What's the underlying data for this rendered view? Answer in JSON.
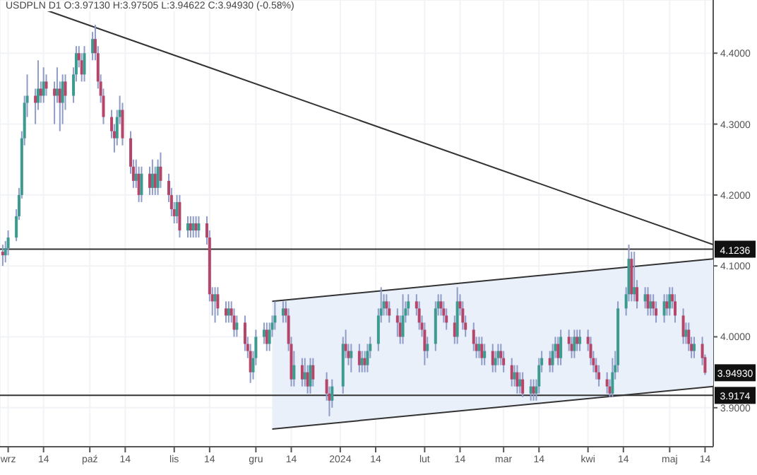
{
  "chart_data": {
    "type": "candlestick",
    "title": "USDPLN D1 O:3.97130 H:3.97505 L:3.94622 C:3.94930 (-0.58%)",
    "x": [
      "2023-08-30",
      "2023-08-31",
      "2023-09-01",
      "2023-09-04",
      "2023-09-05",
      "2023-09-06",
      "2023-09-07",
      "2023-09-08",
      "2023-09-11",
      "2023-09-12",
      "2023-09-13",
      "2023-09-14",
      "2023-09-15",
      "2023-09-18",
      "2023-09-19",
      "2023-09-20",
      "2023-09-21",
      "2023-09-22",
      "2023-09-25",
      "2023-09-26",
      "2023-09-27",
      "2023-09-28",
      "2023-09-29",
      "2023-10-02",
      "2023-10-03",
      "2023-10-04",
      "2023-10-05",
      "2023-10-06",
      "2023-10-09",
      "2023-10-10",
      "2023-10-11",
      "2023-10-12",
      "2023-10-13",
      "2023-10-16",
      "2023-10-17",
      "2023-10-18",
      "2023-10-19",
      "2023-10-20",
      "2023-10-23",
      "2023-10-24",
      "2023-10-25",
      "2023-10-26",
      "2023-10-27",
      "2023-10-30",
      "2023-10-31",
      "2023-11-01",
      "2023-11-02",
      "2023-11-03",
      "2023-11-06",
      "2023-11-07",
      "2023-11-08",
      "2023-11-09",
      "2023-11-10",
      "2023-11-13",
      "2023-11-14",
      "2023-11-15",
      "2023-11-16",
      "2023-11-17",
      "2023-11-20",
      "2023-11-21",
      "2023-11-22",
      "2023-11-23",
      "2023-11-24",
      "2023-11-27",
      "2023-11-28",
      "2023-11-29",
      "2023-11-30",
      "2023-12-01",
      "2023-12-04",
      "2023-12-05",
      "2023-12-06",
      "2023-12-07",
      "2023-12-08",
      "2023-12-11",
      "2023-12-12",
      "2023-12-13",
      "2023-12-14",
      "2023-12-15",
      "2023-12-18",
      "2023-12-19",
      "2023-12-20",
      "2023-12-21",
      "2023-12-22",
      "2023-12-27",
      "2023-12-28",
      "2023-12-29",
      "2024-01-02",
      "2024-01-03",
      "2024-01-04",
      "2024-01-05",
      "2024-01-08",
      "2024-01-09",
      "2024-01-10",
      "2024-01-11",
      "2024-01-12",
      "2024-01-15",
      "2024-01-16",
      "2024-01-17",
      "2024-01-18",
      "2024-01-19",
      "2024-01-22",
      "2024-01-23",
      "2024-01-24",
      "2024-01-25",
      "2024-01-26",
      "2024-01-29",
      "2024-01-30",
      "2024-01-31",
      "2024-02-01",
      "2024-02-02",
      "2024-02-05",
      "2024-02-06",
      "2024-02-07",
      "2024-02-08",
      "2024-02-09",
      "2024-02-12",
      "2024-02-13",
      "2024-02-14",
      "2024-02-15",
      "2024-02-16",
      "2024-02-19",
      "2024-02-20",
      "2024-02-21",
      "2024-02-22",
      "2024-02-23",
      "2024-02-26",
      "2024-02-27",
      "2024-02-28",
      "2024-02-29",
      "2024-03-01",
      "2024-03-04",
      "2024-03-05",
      "2024-03-06",
      "2024-03-07",
      "2024-03-08",
      "2024-03-11",
      "2024-03-12",
      "2024-03-13",
      "2024-03-14",
      "2024-03-15",
      "2024-03-18",
      "2024-03-19",
      "2024-03-20",
      "2024-03-21",
      "2024-03-22",
      "2024-03-25",
      "2024-03-26",
      "2024-03-27",
      "2024-03-28",
      "2024-03-29",
      "2024-04-01",
      "2024-04-02",
      "2024-04-03",
      "2024-04-04",
      "2024-04-05",
      "2024-04-08",
      "2024-04-09",
      "2024-04-10",
      "2024-04-11",
      "2024-04-12",
      "2024-04-15",
      "2024-04-16",
      "2024-04-17",
      "2024-04-18",
      "2024-04-19",
      "2024-04-22",
      "2024-04-23",
      "2024-04-24",
      "2024-04-25",
      "2024-04-26",
      "2024-04-29",
      "2024-04-30",
      "2024-05-01",
      "2024-05-02",
      "2024-05-03",
      "2024-05-06",
      "2024-05-07",
      "2024-05-08",
      "2024-05-09",
      "2024-05-10",
      "2024-05-13",
      "2024-05-14"
    ],
    "ohlc": [
      [
        4.12,
        4.13,
        4.1,
        4.115
      ],
      [
        4.115,
        4.135,
        4.105,
        4.125
      ],
      [
        4.125,
        4.15,
        4.115,
        4.14
      ],
      [
        4.14,
        4.18,
        4.135,
        4.17
      ],
      [
        4.17,
        4.21,
        4.165,
        4.2
      ],
      [
        4.2,
        4.29,
        4.195,
        4.28
      ],
      [
        4.28,
        4.34,
        4.27,
        4.33
      ],
      [
        4.33,
        4.37,
        4.31,
        4.34
      ],
      [
        4.34,
        4.35,
        4.3,
        4.33
      ],
      [
        4.33,
        4.39,
        4.32,
        4.35
      ],
      [
        4.35,
        4.36,
        4.33,
        4.34
      ],
      [
        4.34,
        4.38,
        4.33,
        4.36
      ],
      [
        4.36,
        4.37,
        4.34,
        4.35
      ],
      [
        4.35,
        4.36,
        4.3,
        4.34
      ],
      [
        4.34,
        4.38,
        4.33,
        4.35
      ],
      [
        4.35,
        4.36,
        4.29,
        4.33
      ],
      [
        4.33,
        4.37,
        4.3,
        4.36
      ],
      [
        4.36,
        4.37,
        4.32,
        4.34
      ],
      [
        4.34,
        4.38,
        4.33,
        4.37
      ],
      [
        4.37,
        4.41,
        4.36,
        4.4
      ],
      [
        4.4,
        4.41,
        4.38,
        4.39
      ],
      [
        4.39,
        4.4,
        4.36,
        4.37
      ],
      [
        4.37,
        4.41,
        4.36,
        4.4
      ],
      [
        4.4,
        4.43,
        4.39,
        4.42
      ],
      [
        4.42,
        4.44,
        4.39,
        4.4
      ],
      [
        4.4,
        4.41,
        4.35,
        4.36
      ],
      [
        4.36,
        4.37,
        4.33,
        4.34
      ],
      [
        4.34,
        4.35,
        4.3,
        4.31
      ],
      [
        4.31,
        4.32,
        4.28,
        4.29
      ],
      [
        4.29,
        4.3,
        4.26,
        4.28
      ],
      [
        4.28,
        4.32,
        4.27,
        4.31
      ],
      [
        4.31,
        4.34,
        4.3,
        4.32
      ],
      [
        4.32,
        4.33,
        4.27,
        4.28
      ],
      [
        4.28,
        4.29,
        4.23,
        4.24
      ],
      [
        4.24,
        4.25,
        4.21,
        4.22
      ],
      [
        4.22,
        4.25,
        4.21,
        4.23
      ],
      [
        4.23,
        4.24,
        4.19,
        4.2
      ],
      [
        4.2,
        4.24,
        4.19,
        4.23
      ],
      [
        4.23,
        4.24,
        4.2,
        4.21
      ],
      [
        4.21,
        4.25,
        4.2,
        4.23
      ],
      [
        4.23,
        4.24,
        4.2,
        4.21
      ],
      [
        4.21,
        4.25,
        4.2,
        4.24
      ],
      [
        4.24,
        4.26,
        4.21,
        4.22
      ],
      [
        4.22,
        4.23,
        4.19,
        4.2
      ],
      [
        4.2,
        4.21,
        4.17,
        4.18
      ],
      [
        4.18,
        4.19,
        4.16,
        4.17
      ],
      [
        4.17,
        4.2,
        4.16,
        4.19
      ],
      [
        4.19,
        4.2,
        4.14,
        4.15
      ],
      [
        4.15,
        4.17,
        4.14,
        4.16
      ],
      [
        4.16,
        4.17,
        4.14,
        4.15
      ],
      [
        4.15,
        4.17,
        4.14,
        4.16
      ],
      [
        4.16,
        4.17,
        4.14,
        4.15
      ],
      [
        4.15,
        4.17,
        4.14,
        4.16
      ],
      [
        4.16,
        4.17,
        4.13,
        4.14
      ],
      [
        4.14,
        4.15,
        4.05,
        4.06
      ],
      [
        4.06,
        4.07,
        4.03,
        4.05
      ],
      [
        4.05,
        4.07,
        4.02,
        4.06
      ],
      [
        4.06,
        4.07,
        4.03,
        4.04
      ],
      [
        4.04,
        4.05,
        4.02,
        4.03
      ],
      [
        4.03,
        4.05,
        4.02,
        4.04
      ],
      [
        4.04,
        4.05,
        4.02,
        4.03
      ],
      [
        4.03,
        4.04,
        4.0,
        4.01
      ],
      [
        4.01,
        4.03,
        4.0,
        4.02
      ],
      [
        4.02,
        4.03,
        3.98,
        3.99
      ],
      [
        3.99,
        4.0,
        3.97,
        3.98
      ],
      [
        3.98,
        3.99,
        3.935,
        3.95
      ],
      [
        3.95,
        3.98,
        3.94,
        3.97
      ],
      [
        3.97,
        4.01,
        3.96,
        4.0
      ],
      [
        4.0,
        4.02,
        3.99,
        4.01
      ],
      [
        4.01,
        4.02,
        3.98,
        3.99
      ],
      [
        3.99,
        4.02,
        3.98,
        4.01
      ],
      [
        4.01,
        4.03,
        4.0,
        4.02
      ],
      [
        4.02,
        4.05,
        4.01,
        4.03
      ],
      [
        4.03,
        4.05,
        4.02,
        4.04
      ],
      [
        4.04,
        4.05,
        4.02,
        4.03
      ],
      [
        4.03,
        4.04,
        3.98,
        3.99
      ],
      [
        3.99,
        4.0,
        3.93,
        3.94
      ],
      [
        3.94,
        3.98,
        3.93,
        3.96
      ],
      [
        3.96,
        3.97,
        3.93,
        3.94
      ],
      [
        3.94,
        3.97,
        3.93,
        3.95
      ],
      [
        3.95,
        3.96,
        3.92,
        3.93
      ],
      [
        3.93,
        3.97,
        3.92,
        3.96
      ],
      [
        3.96,
        3.97,
        3.93,
        3.94
      ],
      [
        3.94,
        3.95,
        3.91,
        3.92
      ],
      [
        3.92,
        3.93,
        3.888,
        3.91
      ],
      [
        3.91,
        3.94,
        3.9,
        3.93
      ],
      [
        3.93,
        4.0,
        3.92,
        3.99
      ],
      [
        3.99,
        4.01,
        3.97,
        3.98
      ],
      [
        3.98,
        3.99,
        3.96,
        3.97
      ],
      [
        3.97,
        3.99,
        3.95,
        3.98
      ],
      [
        3.98,
        3.99,
        3.95,
        3.96
      ],
      [
        3.96,
        3.98,
        3.95,
        3.97
      ],
      [
        3.97,
        3.98,
        3.95,
        3.96
      ],
      [
        3.96,
        3.99,
        3.95,
        3.98
      ],
      [
        3.98,
        4.0,
        3.97,
        3.99
      ],
      [
        3.99,
        4.04,
        3.98,
        4.03
      ],
      [
        4.03,
        4.07,
        4.02,
        4.04
      ],
      [
        4.04,
        4.06,
        4.03,
        4.05
      ],
      [
        4.05,
        4.06,
        4.03,
        4.04
      ],
      [
        4.04,
        4.05,
        4.02,
        4.03
      ],
      [
        4.03,
        4.04,
        4.0,
        4.02
      ],
      [
        4.02,
        4.03,
        3.99,
        4.0
      ],
      [
        4.0,
        4.06,
        3.99,
        4.03
      ],
      [
        4.03,
        4.05,
        4.02,
        4.04
      ],
      [
        4.04,
        4.06,
        4.03,
        4.05
      ],
      [
        4.05,
        4.06,
        4.03,
        4.04
      ],
      [
        4.04,
        4.05,
        4.01,
        4.02
      ],
      [
        4.02,
        4.03,
        4.0,
        4.01
      ],
      [
        4.01,
        4.02,
        3.96,
        3.98
      ],
      [
        3.98,
        4.0,
        3.97,
        3.99
      ],
      [
        3.99,
        4.05,
        3.98,
        4.04
      ],
      [
        4.04,
        4.06,
        4.03,
        4.05
      ],
      [
        4.05,
        4.06,
        4.03,
        4.04
      ],
      [
        4.04,
        4.05,
        4.02,
        4.03
      ],
      [
        4.03,
        4.04,
        4.01,
        4.02
      ],
      [
        4.02,
        4.03,
        3.99,
        4.0
      ],
      [
        4.0,
        4.07,
        3.99,
        4.05
      ],
      [
        4.05,
        4.06,
        4.03,
        4.04
      ],
      [
        4.04,
        4.05,
        4.01,
        4.02
      ],
      [
        4.02,
        4.03,
        4.0,
        4.01
      ],
      [
        4.01,
        4.02,
        3.98,
        3.99
      ],
      [
        3.99,
        4.0,
        3.97,
        3.98
      ],
      [
        3.98,
        4.0,
        3.97,
        3.99
      ],
      [
        3.99,
        4.0,
        3.96,
        3.97
      ],
      [
        3.97,
        3.99,
        3.96,
        3.98
      ],
      [
        3.98,
        3.99,
        3.95,
        3.96
      ],
      [
        3.96,
        3.98,
        3.95,
        3.97
      ],
      [
        3.97,
        3.99,
        3.96,
        3.98
      ],
      [
        3.98,
        3.99,
        3.96,
        3.97
      ],
      [
        3.97,
        3.98,
        3.95,
        3.96
      ],
      [
        3.96,
        3.97,
        3.93,
        3.94
      ],
      [
        3.94,
        3.96,
        3.93,
        3.95
      ],
      [
        3.95,
        3.96,
        3.92,
        3.93
      ],
      [
        3.93,
        3.95,
        3.92,
        3.94
      ],
      [
        3.94,
        3.95,
        3.915,
        3.92
      ],
      [
        3.92,
        3.94,
        3.91,
        3.93
      ],
      [
        3.93,
        3.94,
        3.91,
        3.92
      ],
      [
        3.92,
        3.94,
        3.91,
        3.93
      ],
      [
        3.93,
        3.97,
        3.92,
        3.96
      ],
      [
        3.96,
        3.98,
        3.95,
        3.97
      ],
      [
        3.97,
        3.98,
        3.95,
        3.96
      ],
      [
        3.96,
        3.99,
        3.95,
        3.98
      ],
      [
        3.98,
        4.0,
        3.97,
        3.99
      ],
      [
        3.99,
        4.0,
        3.96,
        3.97
      ],
      [
        3.97,
        4.01,
        3.96,
        4.0
      ],
      [
        4.0,
        4.01,
        3.98,
        3.99
      ],
      [
        3.99,
        4.0,
        3.97,
        3.98
      ],
      [
        3.98,
        4.01,
        3.97,
        4.0
      ],
      [
        4.0,
        4.01,
        3.98,
        3.99
      ],
      [
        3.99,
        4.01,
        3.98,
        4.0
      ],
      [
        4.0,
        4.01,
        3.98,
        3.99
      ],
      [
        3.99,
        4.0,
        3.96,
        3.97
      ],
      [
        3.97,
        3.98,
        3.95,
        3.96
      ],
      [
        3.96,
        3.97,
        3.94,
        3.95
      ],
      [
        3.95,
        3.96,
        3.93,
        3.94
      ],
      [
        3.94,
        3.95,
        3.92,
        3.93
      ],
      [
        3.93,
        3.94,
        3.915,
        3.92
      ],
      [
        3.92,
        3.97,
        3.915,
        3.95
      ],
      [
        3.95,
        3.98,
        3.94,
        3.96
      ],
      [
        3.96,
        4.05,
        3.95,
        4.04
      ],
      [
        4.04,
        4.07,
        4.03,
        4.06
      ],
      [
        4.06,
        4.13,
        4.05,
        4.11
      ],
      [
        4.11,
        4.12,
        4.05,
        4.06
      ],
      [
        4.06,
        4.12,
        4.05,
        4.07
      ],
      [
        4.07,
        4.08,
        4.04,
        4.05
      ],
      [
        4.05,
        4.07,
        4.04,
        4.06
      ],
      [
        4.06,
        4.07,
        4.03,
        4.04
      ],
      [
        4.04,
        4.06,
        4.03,
        4.05
      ],
      [
        4.05,
        4.06,
        4.03,
        4.04
      ],
      [
        4.04,
        4.05,
        4.02,
        4.03
      ],
      [
        4.03,
        4.06,
        4.02,
        4.05
      ],
      [
        4.05,
        4.06,
        4.03,
        4.04
      ],
      [
        4.04,
        4.07,
        4.03,
        4.06
      ],
      [
        4.06,
        4.07,
        4.04,
        4.05
      ],
      [
        4.05,
        4.06,
        4.02,
        4.03
      ],
      [
        4.03,
        4.04,
        3.99,
        4.0
      ],
      [
        4.0,
        4.02,
        3.99,
        4.01
      ],
      [
        4.01,
        4.02,
        3.98,
        3.99
      ],
      [
        3.99,
        4.0,
        3.97,
        3.98
      ],
      [
        3.98,
        4.0,
        3.97,
        3.99
      ],
      [
        3.99,
        4.0,
        3.96,
        3.97
      ],
      [
        3.9713,
        3.97505,
        3.94622,
        3.9493
      ]
    ],
    "colors": [
      "#b5466a",
      "#3d9a8f",
      "#3d9a8f",
      "#3d9a8f",
      "#3d9a8f",
      "#3d9a8f",
      "#3d9a8f",
      "#3d9a8f",
      "#b5466a",
      "#3d9a8f",
      "#b5466a",
      "#3d9a8f",
      "#b5466a",
      "#b5466a",
      "#3d9a8f",
      "#b5466a",
      "#3d9a8f",
      "#b5466a",
      "#3d9a8f",
      "#3d9a8f",
      "#b5466a",
      "#b5466a",
      "#3d9a8f",
      "#3d9a8f",
      "#b5466a",
      "#b5466a",
      "#b5466a",
      "#b5466a",
      "#b5466a",
      "#b5466a",
      "#3d9a8f",
      "#3d9a8f",
      "#b5466a",
      "#b5466a",
      "#b5466a",
      "#3d9a8f",
      "#b5466a",
      "#3d9a8f",
      "#b5466a",
      "#3d9a8f",
      "#b5466a",
      "#3d9a8f",
      "#b5466a",
      "#b5466a",
      "#b5466a",
      "#b5466a",
      "#3d9a8f",
      "#b5466a",
      "#3d9a8f",
      "#b5466a",
      "#3d9a8f",
      "#b5466a",
      "#3d9a8f",
      "#b5466a",
      "#b5466a",
      "#b5466a",
      "#3d9a8f",
      "#b5466a",
      "#b5466a",
      "#3d9a8f",
      "#b5466a",
      "#b5466a",
      "#3d9a8f",
      "#b5466a",
      "#b5466a",
      "#b5466a",
      "#3d9a8f",
      "#3d9a8f",
      "#3d9a8f",
      "#b5466a",
      "#3d9a8f",
      "#3d9a8f",
      "#3d9a8f",
      "#3d9a8f",
      "#b5466a",
      "#b5466a",
      "#b5466a",
      "#3d9a8f",
      "#b5466a",
      "#3d9a8f",
      "#b5466a",
      "#3d9a8f",
      "#b5466a",
      "#b5466a",
      "#b5466a",
      "#3d9a8f",
      "#3d9a8f",
      "#b5466a",
      "#b5466a",
      "#3d9a8f",
      "#b5466a",
      "#3d9a8f",
      "#b5466a",
      "#3d9a8f",
      "#3d9a8f",
      "#3d9a8f",
      "#3d9a8f",
      "#3d9a8f",
      "#b5466a",
      "#b5466a",
      "#b5466a",
      "#b5466a",
      "#3d9a8f",
      "#3d9a8f",
      "#3d9a8f",
      "#b5466a",
      "#b5466a",
      "#b5466a",
      "#b5466a",
      "#3d9a8f",
      "#3d9a8f",
      "#3d9a8f",
      "#b5466a",
      "#b5466a",
      "#b5466a",
      "#b5466a",
      "#3d9a8f",
      "#b5466a",
      "#b5466a",
      "#b5466a",
      "#b5466a",
      "#b5466a",
      "#3d9a8f",
      "#b5466a",
      "#3d9a8f",
      "#b5466a",
      "#3d9a8f",
      "#3d9a8f",
      "#b5466a",
      "#b5466a",
      "#b5466a",
      "#3d9a8f",
      "#b5466a",
      "#3d9a8f",
      "#b5466a",
      "#3d9a8f",
      "#b5466a",
      "#3d9a8f",
      "#3d9a8f",
      "#3d9a8f",
      "#b5466a",
      "#3d9a8f",
      "#3d9a8f",
      "#b5466a",
      "#3d9a8f",
      "#b5466a",
      "#b5466a",
      "#3d9a8f",
      "#b5466a",
      "#3d9a8f",
      "#b5466a",
      "#b5466a",
      "#b5466a",
      "#b5466a",
      "#b5466a",
      "#b5466a",
      "#b5466a",
      "#3d9a8f",
      "#3d9a8f",
      "#3d9a8f",
      "#3d9a8f",
      "#3d9a8f",
      "#b5466a",
      "#3d9a8f",
      "#b5466a",
      "#3d9a8f",
      "#b5466a",
      "#3d9a8f",
      "#b5466a",
      "#b5466a",
      "#3d9a8f",
      "#b5466a",
      "#3d9a8f",
      "#b5466a",
      "#b5466a",
      "#b5466a",
      "#3d9a8f",
      "#b5466a",
      "#b5466a",
      "#3d9a8f",
      "#b5466a",
      "#b5466a"
    ],
    "series": [
      {
        "type": "line",
        "x": [
          "2023-09-08",
          "2024-05-17"
        ],
        "values": [
          4.47,
          4.13
        ],
        "color": "#333333"
      },
      {
        "type": "line",
        "x": [
          "2023-12-07",
          "2024-05-17"
        ],
        "values": [
          4.05,
          4.11
        ],
        "lower": [
          3.87,
          3.93
        ],
        "upper": [
          4.05,
          4.11
        ],
        "color": "#333333"
      },
      {
        "type": "line",
        "x": [
          "2023-12-07",
          "2024-05-17"
        ],
        "values": [
          3.87,
          3.93
        ],
        "color": "#333333"
      }
    ],
    "ref_lines": [
      {
        "axis": "y",
        "value": 4.1236,
        "label": "4.1236",
        "color": "#333333"
      },
      {
        "axis": "y",
        "value": 3.9174,
        "label": "3.9174",
        "color": "#333333"
      }
    ],
    "annotations": [
      {
        "text": "3.94930",
        "y": 3.9493
      }
    ],
    "xlim": [
      "2023-08-29",
      "2024-05-17"
    ],
    "xticks": [
      {
        "value": "2023-09-01",
        "label": "wrz"
      },
      {
        "value": "2023-09-14",
        "label": "14"
      },
      {
        "value": "2023-10-01",
        "label": "paź"
      },
      {
        "value": "2023-10-14",
        "label": "14"
      },
      {
        "value": "2023-11-01",
        "label": "lis"
      },
      {
        "value": "2023-11-14",
        "label": "14"
      },
      {
        "value": "2023-12-01",
        "label": "gru"
      },
      {
        "value": "2023-12-14",
        "label": "14"
      },
      {
        "value": "2024-01-01",
        "label": "2024"
      },
      {
        "value": "2024-01-14",
        "label": "14"
      },
      {
        "value": "2024-02-01",
        "label": "lut"
      },
      {
        "value": "2024-02-14",
        "label": "14"
      },
      {
        "value": "2024-03-01",
        "label": "mar"
      },
      {
        "value": "2024-03-14",
        "label": "14"
      },
      {
        "value": "2024-04-01",
        "label": "kwi"
      },
      {
        "value": "2024-04-14",
        "label": "14"
      },
      {
        "value": "2024-05-01",
        "label": "maj"
      },
      {
        "value": "2024-05-14",
        "label": "14"
      }
    ],
    "ylim": [
      3.845,
      4.475
    ],
    "yticks": [
      {
        "value": 3.9,
        "label": "3.9000"
      },
      {
        "value": 4.0,
        "label": "4.0000"
      },
      {
        "value": 4.1,
        "label": "4.1000"
      },
      {
        "value": 4.2,
        "label": "4.2000"
      },
      {
        "value": 4.3,
        "label": "4.3000"
      },
      {
        "value": 4.4,
        "label": "4.4000"
      }
    ],
    "grid": true
  }
}
